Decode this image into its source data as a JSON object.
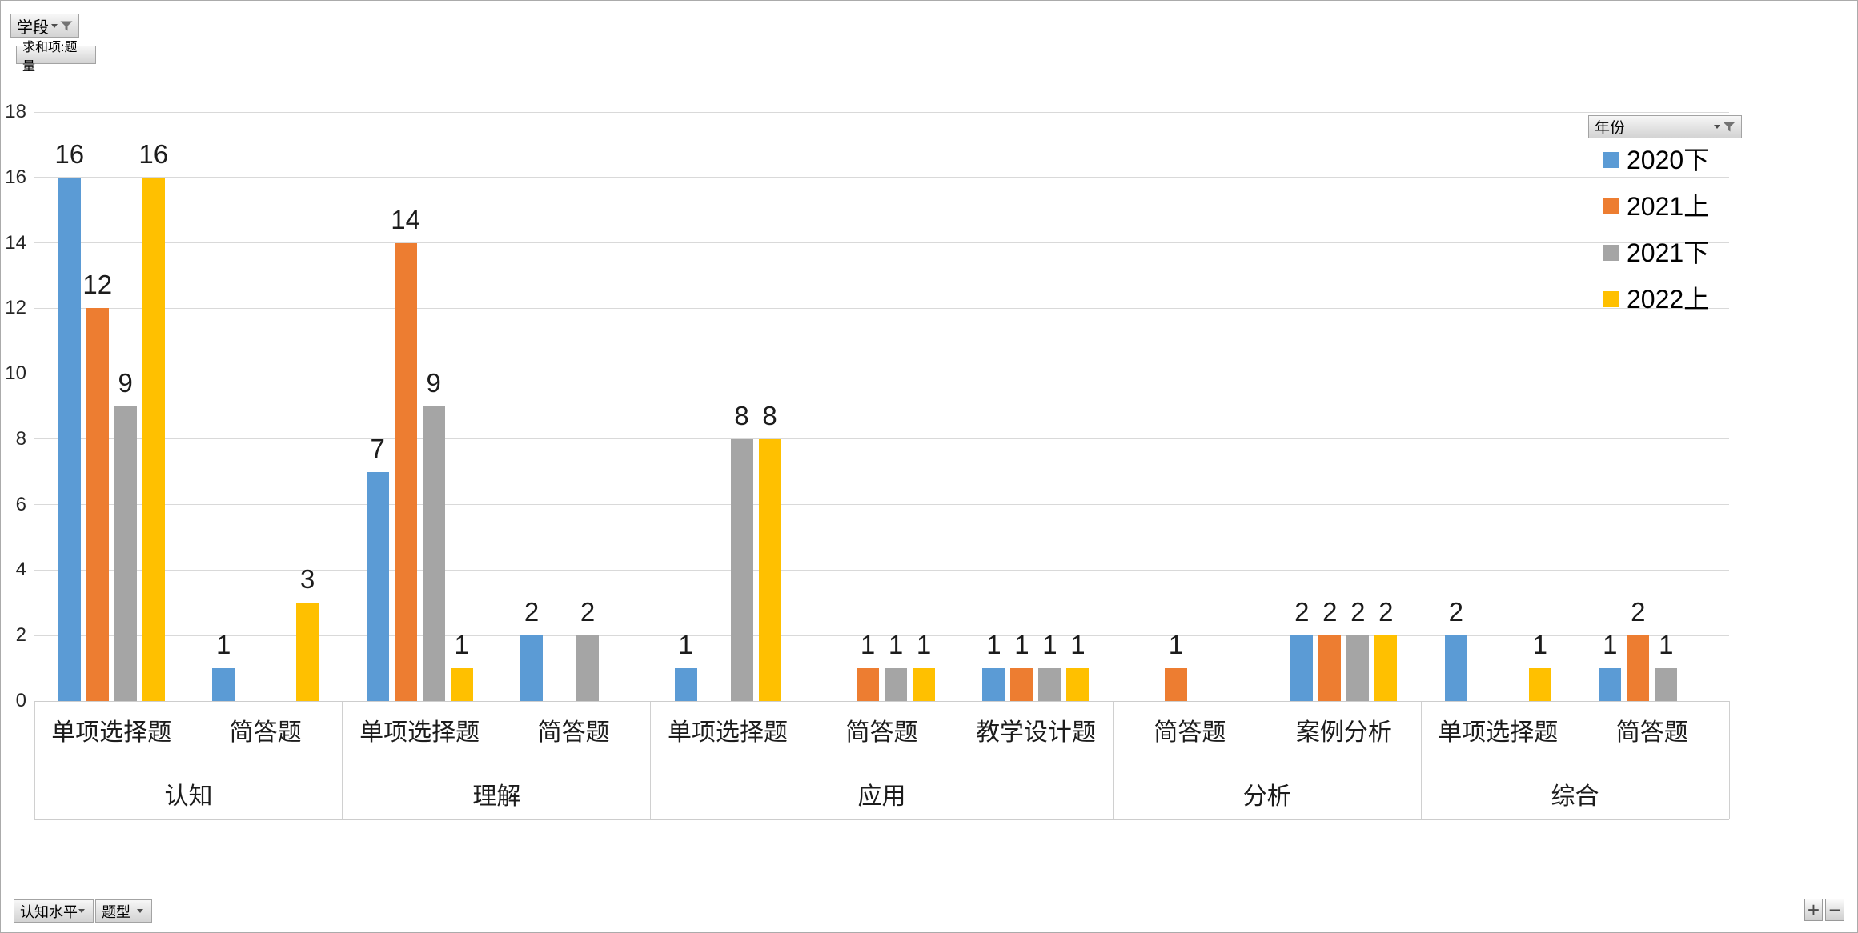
{
  "filters": {
    "page_field": "学段",
    "value_field": "求和项:题量",
    "legend_field": "年份",
    "axis_fields": [
      "认知水平",
      "题型"
    ]
  },
  "controls": {
    "zoom_in": "+",
    "zoom_out": "−"
  },
  "legend": {
    "title": "年份",
    "entries": [
      {
        "label": "2020下",
        "color": "#5B9BD5"
      },
      {
        "label": "2021上",
        "color": "#ED7D31"
      },
      {
        "label": "2021下",
        "color": "#A5A5A5"
      },
      {
        "label": "2022上",
        "color": "#FFC000"
      }
    ]
  },
  "chart_data": {
    "type": "bar",
    "title": "求和项:题量",
    "ylim": [
      0,
      18
    ],
    "yticks": [
      0,
      2,
      4,
      6,
      8,
      10,
      12,
      14,
      16,
      18
    ],
    "grid": true,
    "legend_position": "top-right",
    "series_names": [
      "2020下",
      "2021上",
      "2021下",
      "2022上"
    ],
    "series_colors": [
      "#5B9BD5",
      "#ED7D31",
      "#A5A5A5",
      "#FFC000"
    ],
    "groups": [
      {
        "label": "认知",
        "categories": [
          {
            "label": "单项选择题",
            "values": [
              16,
              12,
              9,
              16
            ]
          },
          {
            "label": "简答题",
            "values": [
              1,
              0,
              0,
              3
            ]
          }
        ]
      },
      {
        "label": "理解",
        "categories": [
          {
            "label": "单项选择题",
            "values": [
              7,
              14,
              9,
              1
            ]
          },
          {
            "label": "简答题",
            "values": [
              2,
              0,
              2,
              0
            ]
          }
        ]
      },
      {
        "label": "应用",
        "categories": [
          {
            "label": "单项选择题",
            "values": [
              1,
              0,
              8,
              8
            ]
          },
          {
            "label": "简答题",
            "values": [
              0,
              1,
              1,
              1
            ]
          },
          {
            "label": "教学设计题",
            "values": [
              1,
              1,
              1,
              1
            ]
          }
        ]
      },
      {
        "label": "分析",
        "categories": [
          {
            "label": "简答题",
            "values": [
              0,
              1,
              0,
              0
            ]
          },
          {
            "label": "案例分析",
            "values": [
              2,
              2,
              2,
              2
            ]
          }
        ]
      },
      {
        "label": "综合",
        "categories": [
          {
            "label": "单项选择题",
            "values": [
              2,
              0,
              0,
              1
            ]
          },
          {
            "label": "简答题",
            "values": [
              1,
              2,
              1,
              0
            ]
          }
        ]
      }
    ]
  }
}
